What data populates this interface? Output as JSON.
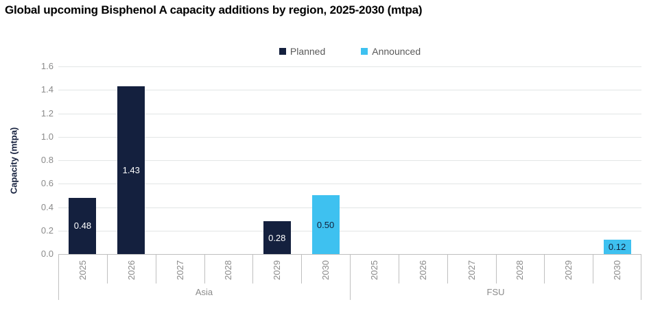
{
  "title": "Global upcoming Bisphenol A capacity additions by region, 2025-2030 (mtpa)",
  "colors": {
    "planned": "#14203E",
    "announced": "#3EC1F0",
    "gridline": "#E2E5E5",
    "axis": "#BFBFBF",
    "tick_text": "#8A8A8A",
    "legend_text": "#595959",
    "ylabel_text": "#16213E"
  },
  "chart_data": {
    "type": "bar",
    "title": "Global upcoming Bisphenol A capacity additions by region, 2025-2030 (mtpa)",
    "xlabel": "",
    "ylabel": "Capacity (mtpa)",
    "ylim": [
      0,
      1.6
    ],
    "ytick_step": 0.2,
    "yticks": [
      "0.0",
      "0.2",
      "0.4",
      "0.6",
      "0.8",
      "1.0",
      "1.2",
      "1.4",
      "1.6"
    ],
    "grid": true,
    "legend_position": "top-center",
    "legend": [
      "Planned",
      "Announced"
    ],
    "series": [
      {
        "name": "Planned",
        "color": "#14203E",
        "label_color": "#FFFFFF"
      },
      {
        "name": "Announced",
        "color": "#3EC1F0",
        "label_color": "#12203A"
      }
    ],
    "groups": [
      {
        "region": "Asia",
        "categories": [
          "2025",
          "2026",
          "2027",
          "2028",
          "2029",
          "2030"
        ],
        "values": {
          "Planned": [
            0.48,
            1.43,
            null,
            null,
            0.28,
            null
          ],
          "Announced": [
            null,
            null,
            null,
            null,
            null,
            0.5
          ]
        }
      },
      {
        "region": "FSU",
        "categories": [
          "2025",
          "2026",
          "2027",
          "2028",
          "2029",
          "2030"
        ],
        "values": {
          "Planned": [
            null,
            null,
            null,
            null,
            null,
            null
          ],
          "Announced": [
            null,
            null,
            null,
            null,
            null,
            0.12
          ]
        }
      }
    ],
    "bar_labels": [
      "0.48",
      "1.43",
      "0.28",
      "0.50",
      "0.12"
    ]
  }
}
